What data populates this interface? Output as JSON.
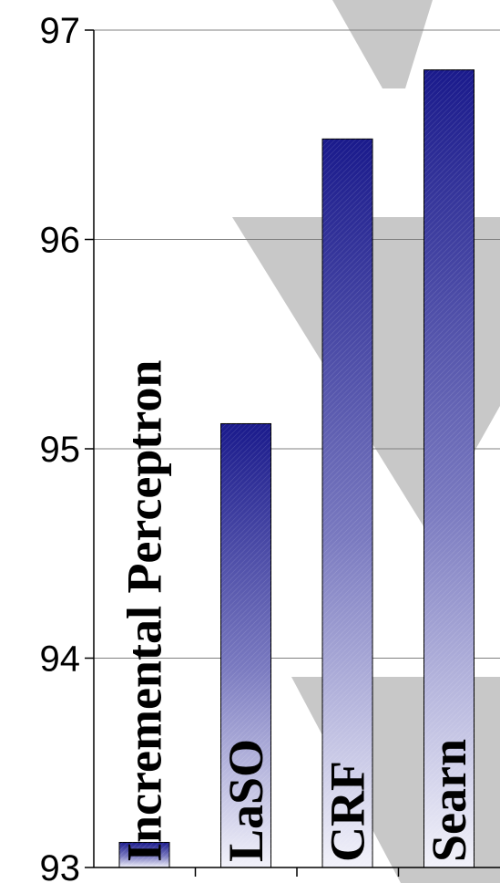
{
  "chart_data": {
    "type": "bar",
    "categories": [
      "Incremental Perceptron",
      "LaSO",
      "CRF",
      "Searn"
    ],
    "values": [
      93.12,
      95.12,
      96.48,
      96.81
    ],
    "ylim": [
      93,
      97
    ],
    "yticks": [
      "93",
      "94",
      "95",
      "96",
      "97"
    ],
    "grid": true,
    "bar_color_top": "#1a1a8c",
    "bar_color_bottom": "#f2f2fa",
    "watermark_color": "#c8c8c8"
  }
}
